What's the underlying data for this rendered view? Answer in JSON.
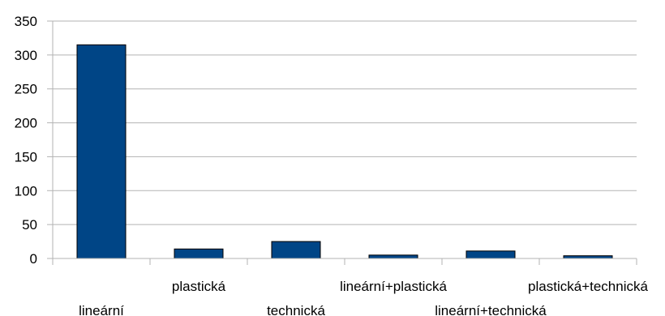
{
  "chart_data": {
    "type": "bar",
    "title": "",
    "xlabel": "",
    "ylabel": "",
    "categories": [
      "lineární",
      "plastická",
      "technická",
      "lineární+plastická",
      "lineární+technická",
      "plastická+technická"
    ],
    "values": [
      315,
      14,
      25,
      5,
      11,
      4
    ],
    "ylim": [
      0,
      350
    ],
    "yticks": [
      "0",
      "50",
      "100",
      "150",
      "200",
      "250",
      "300",
      "350"
    ],
    "grid": true,
    "legend": "none",
    "colors": {
      "bar_fill": "#004586",
      "bar_stroke": "#000000",
      "grid": "#b3b3b3",
      "axis": "#b3b3b3"
    }
  }
}
